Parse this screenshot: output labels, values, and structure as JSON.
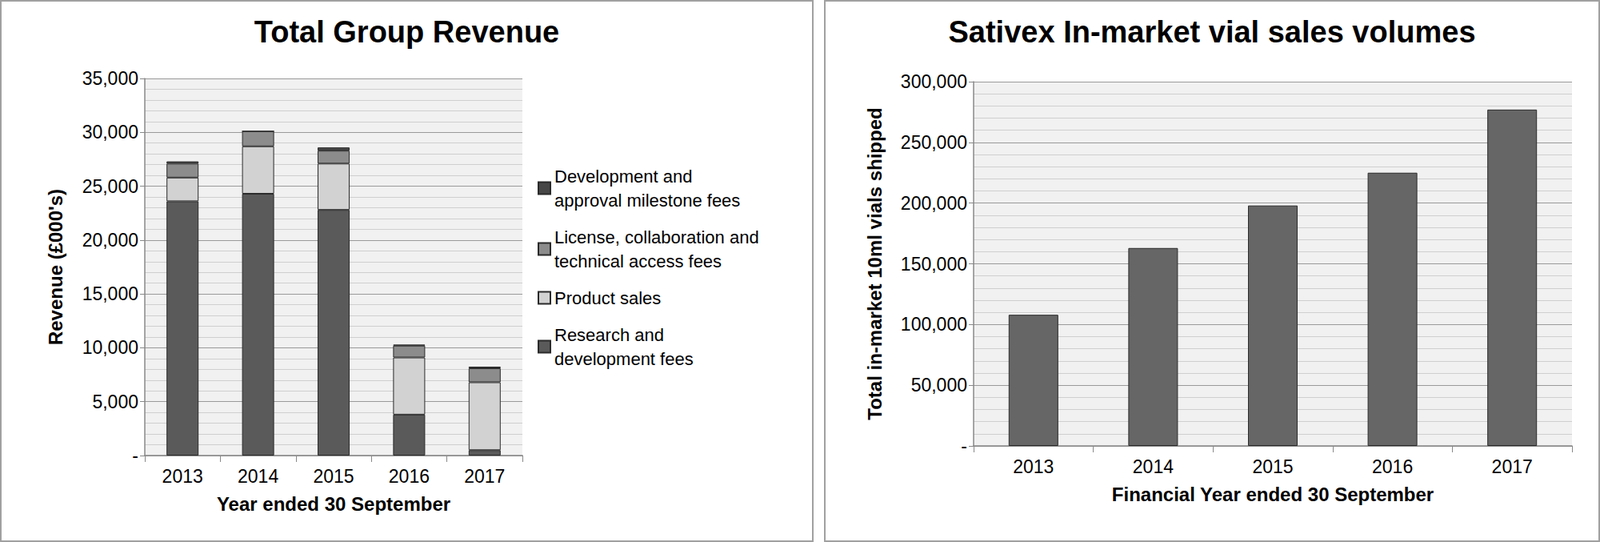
{
  "chart_data": [
    {
      "type": "bar",
      "title": "Total Group Revenue",
      "categories": [
        "2013",
        "2014",
        "2015",
        "2016",
        "2017"
      ],
      "series": [
        {
          "name": "Research and development fees",
          "color": "#5a5a5a",
          "values": [
            23600,
            24300,
            22800,
            3800,
            500
          ]
        },
        {
          "name": "Product sales",
          "color": "#d2d2d2",
          "values": [
            2200,
            4400,
            4300,
            5300,
            6300
          ]
        },
        {
          "name": "License, collaboration and technical access fees",
          "color": "#8c8c8c",
          "values": [
            1300,
            1400,
            1200,
            1100,
            1300
          ]
        },
        {
          "name": "Development and approval milestone fees",
          "color": "#474747",
          "values": [
            200,
            0,
            300,
            100,
            150
          ]
        }
      ],
      "stacked": true,
      "legend": "right",
      "x_label": "Year ended 30 September",
      "y_label": "Revenue (£000's)",
      "ylim": [
        0,
        35000
      ],
      "yticks": [
        {
          "value": 0,
          "label": "-"
        },
        {
          "value": 5000,
          "label": "5,000"
        },
        {
          "value": 10000,
          "label": "10,000"
        },
        {
          "value": 15000,
          "label": "15,000"
        },
        {
          "value": 20000,
          "label": "20,000"
        },
        {
          "value": 25000,
          "label": "25,000"
        },
        {
          "value": 30000,
          "label": "30,000"
        },
        {
          "value": 35000,
          "label": "35,000"
        }
      ],
      "grid": true
    },
    {
      "type": "bar",
      "title": "Sativex In-market vial sales volumes",
      "categories": [
        "2013",
        "2014",
        "2015",
        "2016",
        "2017"
      ],
      "values": [
        108000,
        163000,
        198000,
        225000,
        277000
      ],
      "color": "#666666",
      "x_label": "Financial Year ended 30 September",
      "y_label": "Total in-market 10ml vials shipped",
      "ylim": [
        0,
        300000
      ],
      "yticks": [
        {
          "value": 0,
          "label": "-"
        },
        {
          "value": 50000,
          "label": "50,000"
        },
        {
          "value": 100000,
          "label": "100,000"
        },
        {
          "value": 150000,
          "label": "150,000"
        },
        {
          "value": 200000,
          "label": "200,000"
        },
        {
          "value": 250000,
          "label": "250,000"
        },
        {
          "value": 300000,
          "label": "300,000"
        }
      ],
      "grid": true
    }
  ]
}
